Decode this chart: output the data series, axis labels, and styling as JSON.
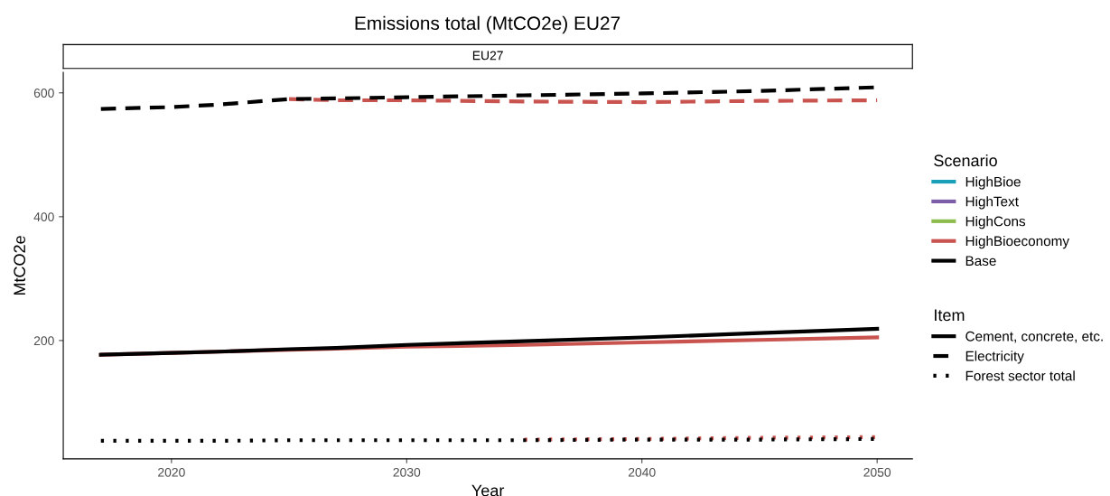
{
  "chart_data": {
    "type": "line",
    "title": "Emissions total (MtCO2e) EU27",
    "subtitle": "EU27",
    "xlabel": "Year",
    "ylabel": "MtCO2e",
    "legend_title": [
      "Scenario",
      "Item"
    ],
    "legend": "right",
    "grid": false,
    "annotations": [
      "Cement, concrete, etc.",
      "Electricity",
      "Forest sector total"
    ],
    "x": [
      2017,
      2020,
      2022,
      2025,
      2027,
      2030,
      2035,
      2040,
      2045,
      2050
    ],
    "xlim": [
      2015.4,
      2051.5
    ],
    "xticks": [
      2020,
      2030,
      2040,
      2050
    ],
    "ylim": [
      9,
      633
    ],
    "yticks": [
      200,
      400,
      600
    ],
    "series": [
      {
        "name": "HighBioe",
        "color": "#1a9fb8",
        "line_style": "solid",
        "values": [
          null,
          null,
          null,
          null,
          null,
          null,
          null,
          null,
          null,
          null
        ]
      },
      {
        "name": "HighText",
        "color": "#7b5ea7",
        "line_style": "solid",
        "values": [
          null,
          null,
          null,
          null,
          null,
          null,
          null,
          null,
          null,
          null
        ]
      },
      {
        "name": "HighCons",
        "color": "#8fbc4f",
        "line_style": "solid",
        "values": [
          null,
          null,
          null,
          null,
          null,
          null,
          null,
          null,
          null,
          null
        ]
      },
      {
        "name": "HighBioeconomy",
        "color": "#c9534f",
        "line_style": "solid",
        "values": [
          177,
          180,
          182,
          185,
          187,
          190,
          193,
          197,
          201,
          205
        ]
      },
      {
        "name": "Base",
        "color": "#000000",
        "line_style": "solid",
        "values": [
          177,
          180,
          182,
          186,
          188,
          193,
          199,
          205,
          212,
          219
        ]
      },
      {
        "color": "#c9534f",
        "line_style": "dashed",
        "values": [
          null,
          null,
          null,
          590,
          588,
          588,
          586,
          585,
          587,
          588
        ]
      },
      {
        "color": "#000000",
        "line_style": "dashed",
        "values": [
          574,
          577,
          581,
          590,
          591,
          593,
          596,
          599,
          603,
          609
        ]
      },
      {
        "color": "#c9534f",
        "line_style": "dotted",
        "values": [
          null,
          null,
          null,
          null,
          null,
          null,
          40,
          41,
          43,
          44
        ]
      },
      {
        "color": "#000000",
        "line_style": "dotted",
        "values": [
          38,
          38,
          38,
          39,
          39,
          39,
          39,
          40,
          40,
          41
        ]
      }
    ]
  }
}
